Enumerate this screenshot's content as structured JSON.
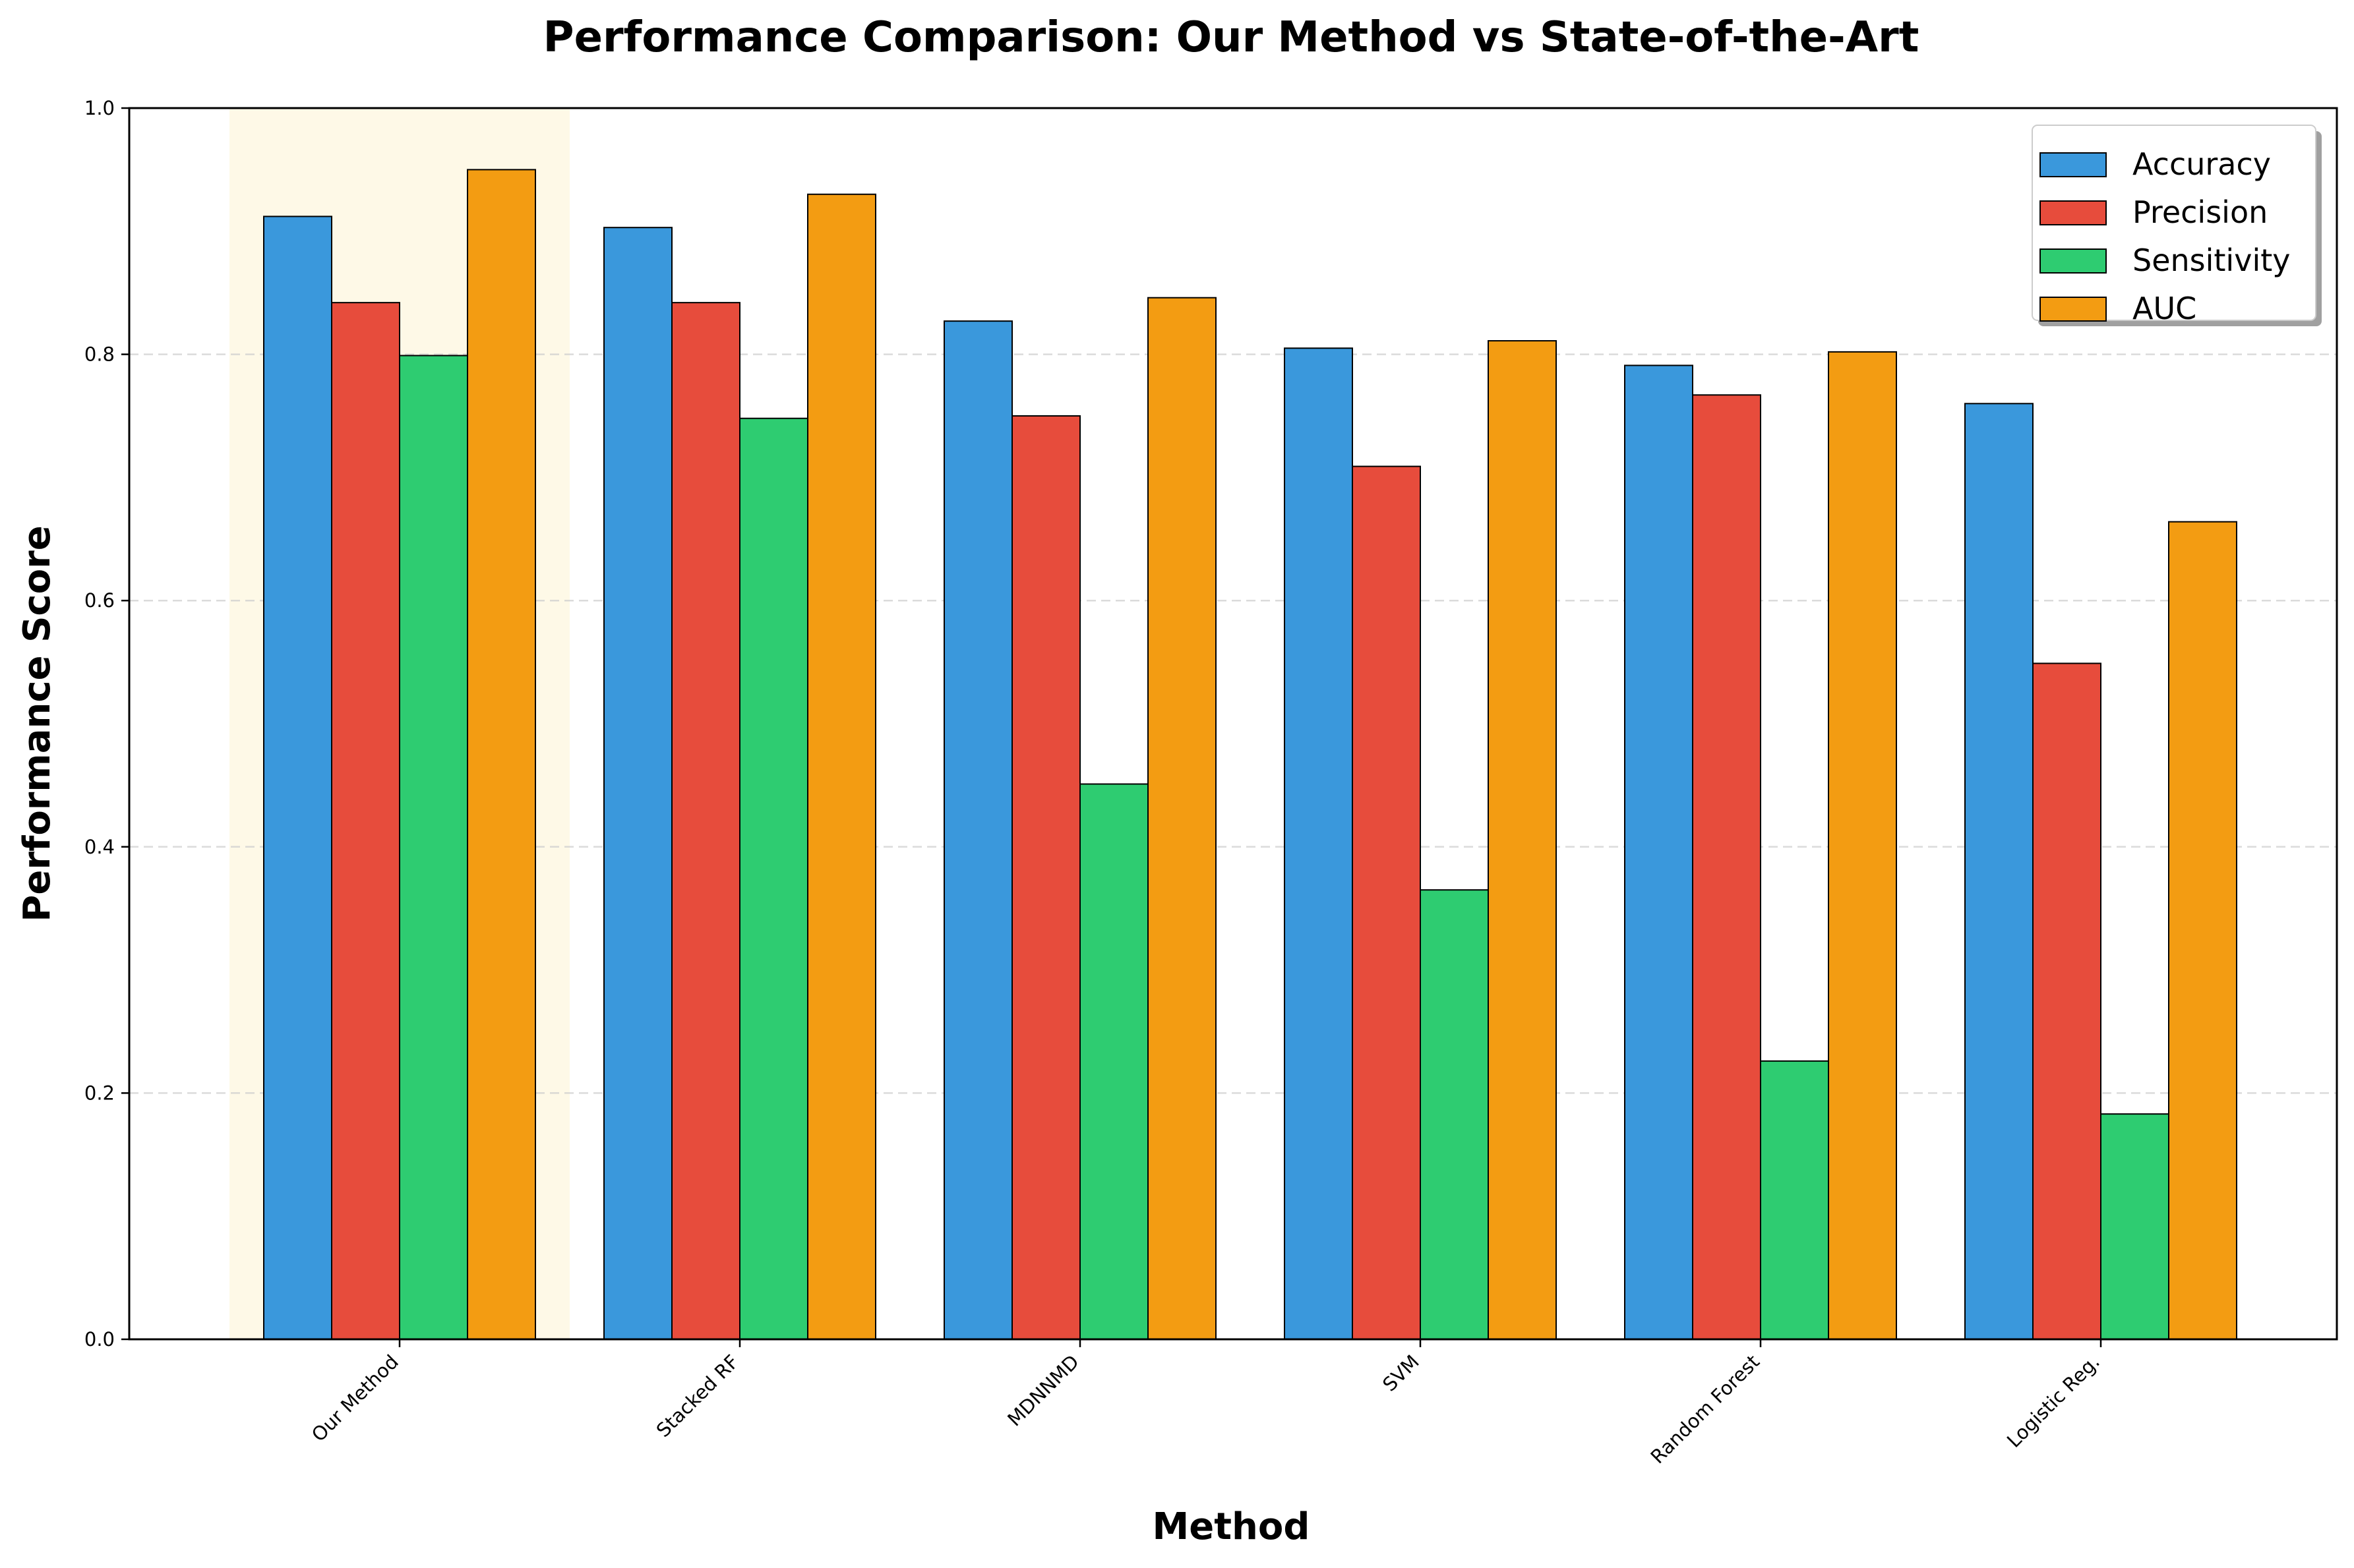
{
  "chart_data": {
    "type": "bar",
    "title": "Performance Comparison: Our Method vs State-of-the-Art",
    "xlabel": "Method",
    "ylabel": "Performance Score",
    "ylim": [
      0,
      1.0
    ],
    "yticks": [
      "0.0",
      "0.2",
      "0.4",
      "0.6",
      "0.8",
      "1.0"
    ],
    "ytick_values": [
      0,
      0.2,
      0.4,
      0.6,
      0.8,
      1.0
    ],
    "grid": "y-dashed",
    "legend_position": "top-right",
    "highlight_category": "Our Method",
    "highlight_color": "#fef9e7",
    "categories": [
      "Our Method",
      "Stacked RF",
      "MDNNMD",
      "SVM",
      "Random Forest",
      "Logistic Reg."
    ],
    "series": [
      {
        "name": "Accuracy",
        "color": "#3a98dc",
        "values": [
          0.912,
          0.903,
          0.827,
          0.805,
          0.791,
          0.76
        ]
      },
      {
        "name": "Precision",
        "color": "#e74c3c",
        "values": [
          0.842,
          0.842,
          0.75,
          0.709,
          0.767,
          0.549
        ]
      },
      {
        "name": "Sensitivity",
        "color": "#2ecc71",
        "values": [
          0.799,
          0.748,
          0.451,
          0.365,
          0.226,
          0.183
        ]
      },
      {
        "name": "AUC",
        "color": "#f39c12",
        "values": [
          0.95,
          0.93,
          0.846,
          0.811,
          0.802,
          0.664
        ]
      }
    ]
  }
}
